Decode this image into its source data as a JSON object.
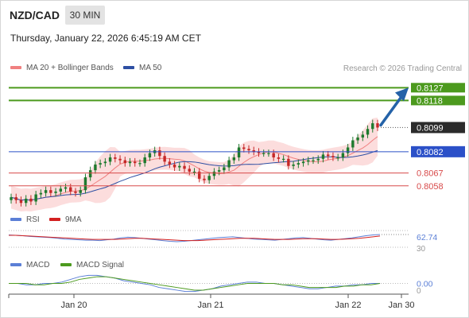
{
  "header": {
    "symbol": "NZD/CAD",
    "timeframe": "30 MIN",
    "datetime": "Thursday, January 22, 2026 6:45:19 AM CET",
    "copyright": "Research © 2026 Trading Central"
  },
  "legend": {
    "ma20_label": "MA 20 + Bollinger Bands",
    "ma50_label": "MA 50",
    "rsi_label": "RSI",
    "rsi_ma_label": "9MA",
    "macd_label": "MACD",
    "macd_signal_label": "MACD Signal"
  },
  "colors": {
    "bull_candle": "#1e7a2e",
    "bear_candle": "#c62828",
    "ma20": "#f08080",
    "bollinger_fill": "#fbd2d2",
    "ma50": "#2e4fa3",
    "resistance": "#4c9a1e",
    "support": "#d84a4a",
    "pivot": "#2b50c8",
    "arrow": "#2462a8",
    "rsi": "#5b7fd6",
    "rsi_ma": "#d32020",
    "macd": "#5b7fd6",
    "macd_signal": "#4c9a1e"
  },
  "chart_data": [
    {
      "type": "candlestick",
      "title": "NZD/CAD",
      "x_ticks": [
        "Jan 20",
        "Jan 21",
        "Jan 22",
        "Jan 30"
      ],
      "ylim": [
        0.804,
        0.8135
      ],
      "indicators": [
        "MA 20 + Bollinger Bands",
        "MA 50"
      ],
      "levels": [
        {
          "label": "0.8127",
          "value": 0.8127,
          "kind": "resistance"
        },
        {
          "label": "0.8118",
          "value": 0.8118,
          "kind": "resistance"
        },
        {
          "label": "0.8099",
          "value": 0.8099,
          "kind": "last-price"
        },
        {
          "label": "0.8082",
          "value": 0.8082,
          "kind": "pivot"
        },
        {
          "label": "0.8067",
          "value": 0.8067,
          "kind": "support"
        },
        {
          "label": "0.8058",
          "value": 0.8058,
          "kind": "support"
        }
      ],
      "close_path": [
        0.805,
        0.8048,
        0.8046,
        0.8049,
        0.8047,
        0.8052,
        0.8053,
        0.8055,
        0.8053,
        0.8054,
        0.8056,
        0.8057,
        0.8054,
        0.8053,
        0.8055,
        0.8064,
        0.8069,
        0.8073,
        0.8074,
        0.8075,
        0.8078,
        0.8077,
        0.8076,
        0.8074,
        0.8075,
        0.8074,
        0.8074,
        0.8078,
        0.8081,
        0.8083,
        0.8079,
        0.8075,
        0.8073,
        0.8071,
        0.8072,
        0.807,
        0.8068,
        0.8068,
        0.8063,
        0.8062,
        0.8065,
        0.8068,
        0.8069,
        0.8071,
        0.8076,
        0.8078,
        0.8085,
        0.8084,
        0.8083,
        0.8082,
        0.8081,
        0.8081,
        0.8081,
        0.8078,
        0.8077,
        0.8077,
        0.8072,
        0.8073,
        0.8074,
        0.8075,
        0.8076,
        0.8076,
        0.8077,
        0.808,
        0.8079,
        0.8078,
        0.8078,
        0.8081,
        0.8085,
        0.809,
        0.8092,
        0.8094,
        0.8098,
        0.8102,
        0.8099
      ]
    },
    {
      "type": "line",
      "title": "RSI",
      "series": [
        {
          "name": "RSI",
          "values": [
            62,
            61,
            60,
            58,
            57,
            56,
            55,
            53,
            51,
            50,
            49,
            48,
            48,
            47,
            49,
            51,
            54,
            56,
            55,
            53,
            51,
            49,
            47,
            45,
            44,
            45,
            47,
            49,
            51,
            53,
            55,
            56,
            57,
            55,
            53,
            51,
            50,
            49,
            48,
            50,
            52,
            54,
            55,
            53,
            51,
            49,
            48,
            50,
            52,
            54,
            57,
            60,
            62,
            63
          ]
        },
        {
          "name": "9MA",
          "values": [
            61,
            61,
            60,
            59,
            58,
            57,
            56,
            55,
            54,
            53,
            52,
            51,
            50,
            50,
            50,
            50,
            51,
            52,
            53,
            53,
            52,
            51,
            50,
            49,
            48,
            47,
            47,
            47,
            48,
            49,
            50,
            51,
            52,
            53,
            53,
            53,
            52,
            51,
            50,
            50,
            50,
            51,
            52,
            52,
            52,
            51,
            50,
            50,
            51,
            52,
            53,
            55,
            57,
            59
          ]
        }
      ],
      "y_ticks": [
        "62.74",
        "30"
      ],
      "ylim": [
        25,
        80
      ]
    },
    {
      "type": "line",
      "title": "MACD",
      "series": [
        {
          "name": "MACD",
          "values": [
            0.0,
            0.0,
            -0.0001,
            -0.0001,
            0.0,
            0.0,
            0.0001,
            0.0003,
            0.0005,
            0.0006,
            0.0006,
            0.0005,
            0.0004,
            0.0002,
            0.0001,
            0.0,
            -0.0001,
            -0.0003,
            -0.0004,
            -0.0005,
            -0.0006,
            -0.0006,
            -0.0005,
            -0.0004,
            -0.0002,
            -0.0001,
            0.0,
            0.0001,
            0.0001,
            0.0,
            0.0,
            -0.0001,
            -0.0002,
            -0.0003,
            -0.0004,
            -0.0004,
            -0.0003,
            -0.0002,
            -0.0002,
            -0.0001,
            -0.0001,
            0.0,
            0.0
          ]
        },
        {
          "name": "MACD Signal",
          "values": [
            0.0,
            0.0,
            0.0,
            -0.0001,
            -0.0001,
            0.0,
            0.0,
            0.0001,
            0.0003,
            0.0004,
            0.0005,
            0.0005,
            0.0004,
            0.0003,
            0.0002,
            0.0001,
            0.0,
            -0.0001,
            -0.0002,
            -0.0003,
            -0.0004,
            -0.0005,
            -0.0005,
            -0.0004,
            -0.0003,
            -0.0002,
            -0.0001,
            0.0,
            0.0,
            0.0,
            0.0,
            -0.0001,
            -0.0001,
            -0.0002,
            -0.0003,
            -0.0003,
            -0.0003,
            -0.0003,
            -0.0002,
            -0.0002,
            -0.0001,
            -0.0001,
            0.0
          ]
        }
      ],
      "y_ticks": [
        "0.00",
        "0"
      ],
      "ylim": [
        -0.0008,
        0.0008
      ]
    }
  ]
}
